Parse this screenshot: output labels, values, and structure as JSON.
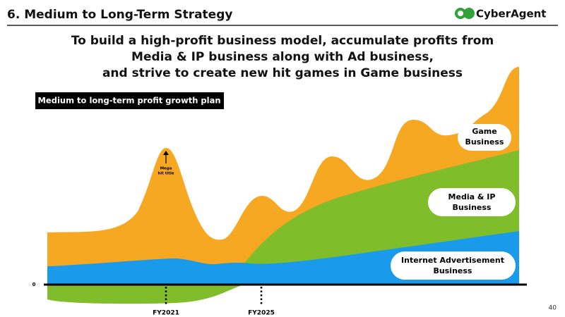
{
  "header": {
    "title": "6.  Medium to Long-Term Strategy",
    "logo": "CyberAgent"
  },
  "headline": [
    "To build a high-profit business model, accumulate profits from",
    "Media & IP business along with Ad business,",
    "and strive to create new hit games in Game business"
  ],
  "plan_label": "Medium to long-term profit growth plan",
  "segments": {
    "game": [
      "Game",
      "Business"
    ],
    "media": [
      "Media & IP",
      "Business"
    ],
    "ad": [
      "Internet Advertisement",
      "Business"
    ]
  },
  "annotation": [
    "Mega",
    "hit title"
  ],
  "axis": {
    "zero": "0",
    "fy": [
      "FY2021",
      "FY2025"
    ]
  },
  "page_number": "40"
}
